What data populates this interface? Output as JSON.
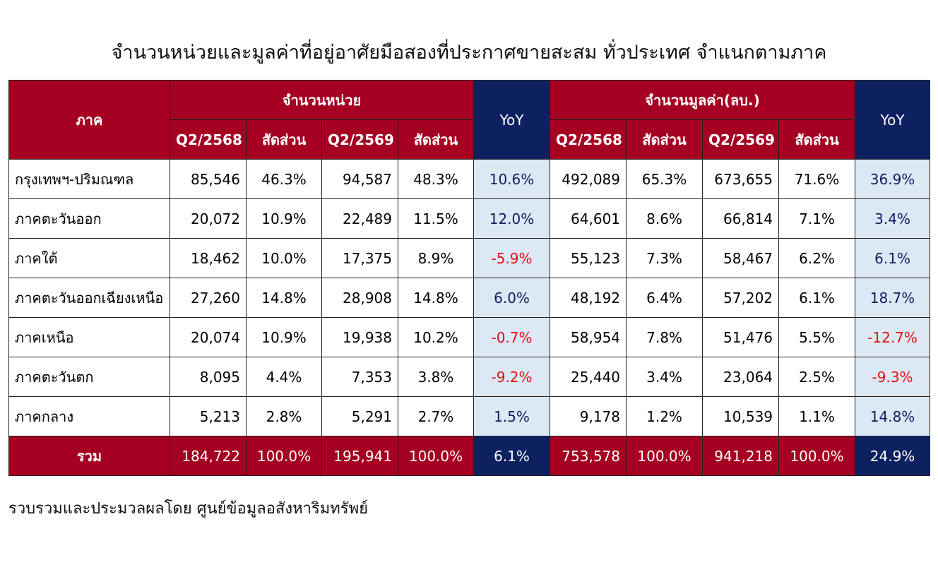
{
  "title": "จำนวนหน่วยและมูลค่าที่อยู่อาศัยมือสองที่ประกาศขายสะสม ทั่วประเทศ จำแนกตามภาค",
  "table": {
    "header_top": [
      "ภาค",
      "จำนวนหน่วย",
      "YoY",
      "จำนวนมูลค่า(ลบ.)",
      "YoY"
    ],
    "header_sub": [
      "Q2/2568",
      "สัดส่วน",
      "Q2/2569",
      "สัดส่วน",
      "Q2/2568",
      "สัดส่วน",
      "Q2/2569",
      "สัดส่วน"
    ],
    "rows": [
      [
        "กรุงเทพฯ-ปริมณฑล",
        "85,546",
        "46.3%",
        "94,587",
        "48.3%",
        "10.6%",
        "492,089",
        "65.3%",
        "673,655",
        "71.6%",
        "36.9%"
      ],
      [
        "ภาคตะวันออก",
        "20,072",
        "10.9%",
        "22,489",
        "11.5%",
        "12.0%",
        "64,601",
        "8.6%",
        "66,814",
        "7.1%",
        "3.4%"
      ],
      [
        "ภาคใต้",
        "18,462",
        "10.0%",
        "17,375",
        "8.9%",
        "-5.9%",
        "55,123",
        "7.3%",
        "58,467",
        "6.2%",
        "6.1%"
      ],
      [
        "ภาคตะวันออกเฉียงเหนือ",
        "27,260",
        "14.8%",
        "28,908",
        "14.8%",
        "6.0%",
        "48,192",
        "6.4%",
        "57,202",
        "6.1%",
        "18.7%"
      ],
      [
        "ภาคเหนือ",
        "20,074",
        "10.9%",
        "19,938",
        "10.2%",
        "-0.7%",
        "58,954",
        "7.8%",
        "51,476",
        "5.5%",
        "-12.7%"
      ],
      [
        "ภาคตะวันตก",
        "8,095",
        "4.4%",
        "7,353",
        "3.8%",
        "-9.2%",
        "25,440",
        "3.4%",
        "23,064",
        "2.5%",
        "-9.3%"
      ],
      [
        "ภาคกลาง",
        "5,213",
        "2.8%",
        "5,291",
        "2.7%",
        "1.5%",
        "9,178",
        "1.2%",
        "10,539",
        "1.1%",
        "14.8%"
      ]
    ],
    "total": [
      "รวม",
      "184,722",
      "100.0%",
      "195,941",
      "100.0%",
      "6.1%",
      "753,578",
      "100.0%",
      "941,218",
      "100.0%",
      "24.9%"
    ]
  },
  "source": "รวบรวมและประมวลผลโดย ศูนย์ข้อมูลอสังหาริมทรัพย์"
}
